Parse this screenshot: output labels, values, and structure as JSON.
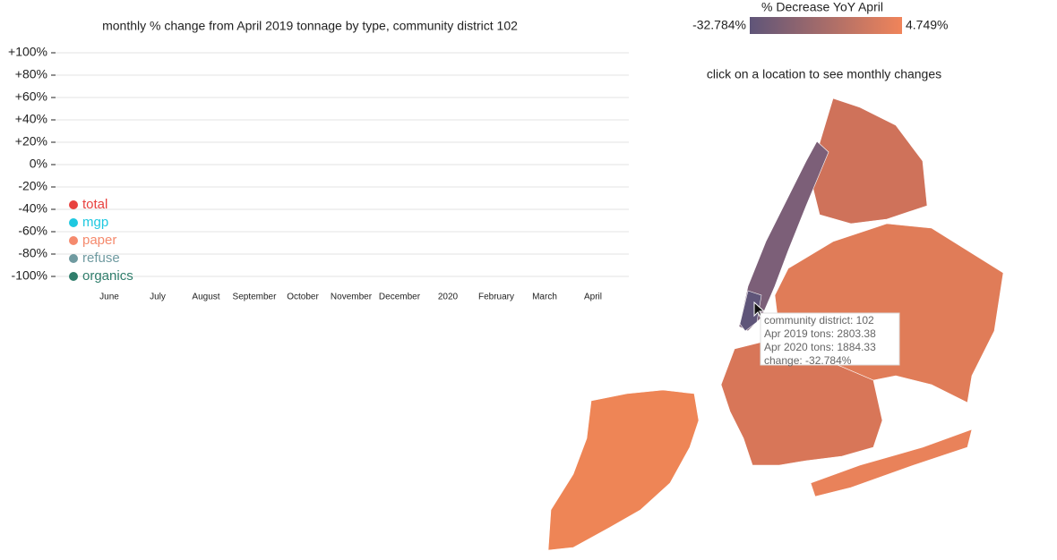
{
  "chart_data": {
    "type": "line",
    "title": "monthly % change from April 2019 tonnage by type, community district 102",
    "categories": [
      "June",
      "July",
      "August",
      "September",
      "October",
      "November",
      "December",
      "2020",
      "February",
      "March",
      "April"
    ],
    "ylim": [
      -100,
      100
    ],
    "yticks": [
      {
        "value": 100,
        "label": "+100%"
      },
      {
        "value": 80,
        "label": "+80%"
      },
      {
        "value": 60,
        "label": "+60%"
      },
      {
        "value": 40,
        "label": "+40%"
      },
      {
        "value": 20,
        "label": "+20%"
      },
      {
        "value": 0,
        "label": "0%"
      },
      {
        "value": -20,
        "label": "-20%"
      },
      {
        "value": -40,
        "label": "-40%"
      },
      {
        "value": -60,
        "label": "-60%"
      },
      {
        "value": -80,
        "label": "-80%"
      },
      {
        "value": -100,
        "label": "-100%"
      }
    ],
    "grid": true,
    "legend": [
      {
        "name": "total",
        "color": "#e8413e"
      },
      {
        "name": "mgp",
        "color": "#1ec8e0"
      },
      {
        "name": "paper",
        "color": "#f58a6d"
      },
      {
        "name": "refuse",
        "color": "#6f9aa0"
      },
      {
        "name": "organics",
        "color": "#2f7d6b"
      }
    ]
  },
  "map": {
    "legend_title": "% Decrease YoY April",
    "min": {
      "value": -32.784,
      "label": "-32.784%"
    },
    "max": {
      "value": 4.749,
      "label": "4.749%"
    },
    "colors": [
      "#5f5579",
      "#f0845a"
    ],
    "instruction": "click on a location to see monthly changes",
    "tooltip": [
      "community district: 102",
      "Apr 2019 tons: 2803.38",
      "Apr 2020 tons: 1884.33",
      "change: -32.784%"
    ]
  }
}
